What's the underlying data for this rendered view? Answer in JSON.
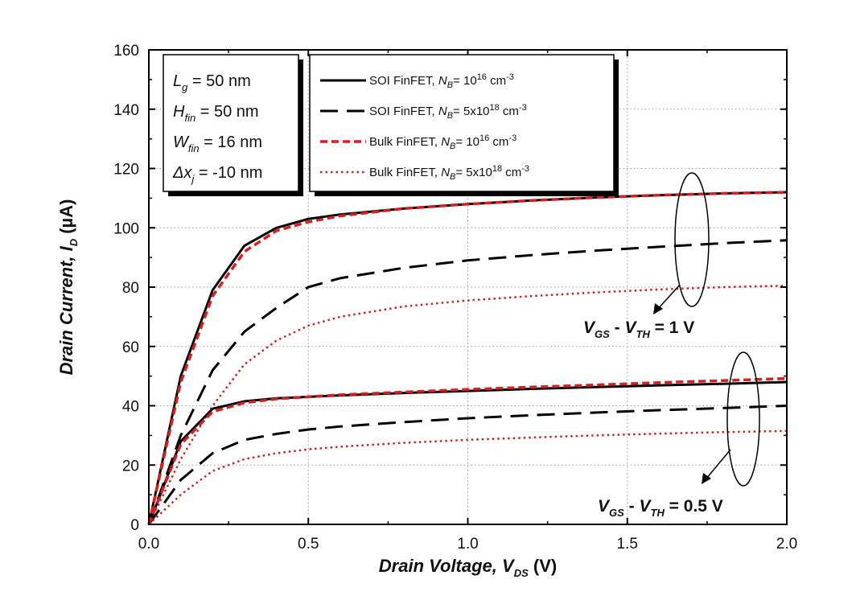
{
  "chart_data": {
    "type": "line",
    "xlabel": {
      "main": "Drain Voltage, V",
      "sub": "DS",
      "unit": " (V)"
    },
    "ylabel": {
      "main": "Drain Current, I",
      "sub": "D",
      "unit": "  (µA)"
    },
    "xlim": [
      0,
      2.0
    ],
    "ylim": [
      0,
      160
    ],
    "xticks": [
      "0.0",
      "0.5",
      "1.0",
      "1.5",
      "2.0"
    ],
    "yticks": [
      "0",
      "20",
      "40",
      "60",
      "80",
      "100",
      "120",
      "140",
      "160"
    ],
    "grid": true,
    "params": [
      {
        "sym": "L",
        "sub": "g",
        "val": " = 50 nm"
      },
      {
        "sym": "H",
        "sub": "fin",
        "val": " = 50 nm"
      },
      {
        "sym": "W",
        "sub": "fin",
        "val": " = 16 nm"
      },
      {
        "sym": "Δx",
        "sub": "j",
        "val": " = -10 nm"
      }
    ],
    "legend": [
      {
        "pre": "SOI FinFET, ",
        "nb": "N",
        "nbsub": "B",
        "eq": "= 10",
        "sup": "16",
        "unit": " cm",
        "unitsup": "-3"
      },
      {
        "pre": "SOI FinFET, ",
        "nb": "N",
        "nbsub": "B",
        "eq": "= 5x10",
        "sup": "18",
        "unit": " cm",
        "unitsup": "-3"
      },
      {
        "pre": "Bulk FinFET, ",
        "nb": "N",
        "nbsub": "B",
        "eq": "= 10",
        "sup": "16",
        "unit": " cm",
        "unitsup": "-3"
      },
      {
        "pre": "Bulk FinFET, ",
        "nb": "N",
        "nbsub": "B",
        "eq": "= 5x10",
        "sup": "18",
        "unit": " cm",
        "unitsup": "-3"
      }
    ],
    "annotations": [
      {
        "v1": "V",
        "s1": "GS",
        "mid": " - ",
        "v2": "V",
        "s2": "TH",
        "val": " = 1 V"
      },
      {
        "v1": "V",
        "s1": "GS",
        "mid": " - ",
        "v2": "V",
        "s2": "TH",
        "val": " = 0.5 V"
      }
    ],
    "x": [
      0,
      0.1,
      0.2,
      0.3,
      0.4,
      0.5,
      0.6,
      0.8,
      1.0,
      1.2,
      1.4,
      1.6,
      1.8,
      2.0
    ],
    "series": [
      {
        "style": "soi_low",
        "color": "#000000",
        "group": "1V",
        "values": [
          0,
          50,
          79,
          94,
          100,
          103,
          104.5,
          106.5,
          108,
          109.2,
          110.2,
          111,
          111.6,
          112
        ]
      },
      {
        "style": "soi_high",
        "color": "#000000",
        "group": "1V",
        "values": [
          0,
          30,
          52,
          65,
          73,
          80,
          83,
          86.5,
          89,
          90.8,
          92.3,
          93.6,
          94.8,
          95.8
        ]
      },
      {
        "style": "bulk_low",
        "color": "#d42020",
        "group": "1V",
        "values": [
          0,
          48,
          77,
          92,
          99,
          102,
          104,
          106.5,
          108,
          109.2,
          110.2,
          111,
          111.6,
          112
        ]
      },
      {
        "style": "bulk_high",
        "color": "#d42020",
        "group": "1V",
        "values": [
          0,
          22,
          40,
          54,
          62,
          67,
          70,
          73.5,
          75.5,
          77,
          78.2,
          79.2,
          80,
          80.5
        ]
      },
      {
        "style": "soi_low",
        "color": "#000000",
        "group": "0.5V",
        "values": [
          0,
          28,
          39,
          41.5,
          42.5,
          43,
          43.5,
          44.3,
          45,
          45.7,
          46.3,
          46.9,
          47.4,
          48
        ]
      },
      {
        "style": "soi_high",
        "color": "#000000",
        "group": "0.5V",
        "values": [
          0,
          15,
          24,
          28.5,
          30.5,
          32,
          33,
          34.5,
          35.8,
          36.8,
          37.7,
          38.5,
          39.2,
          40
        ]
      },
      {
        "style": "bulk_low",
        "color": "#d42020",
        "group": "0.5V",
        "values": [
          0,
          27,
          38,
          41,
          42.3,
          43,
          43.7,
          44.6,
          45.5,
          46.3,
          47,
          47.8,
          48.5,
          49.2
        ]
      },
      {
        "style": "bulk_high",
        "color": "#d42020",
        "group": "0.5V",
        "values": [
          0,
          10,
          18,
          22,
          24,
          25.3,
          26.2,
          27.5,
          28.5,
          29.3,
          30,
          30.6,
          31.1,
          31.5
        ]
      }
    ]
  }
}
